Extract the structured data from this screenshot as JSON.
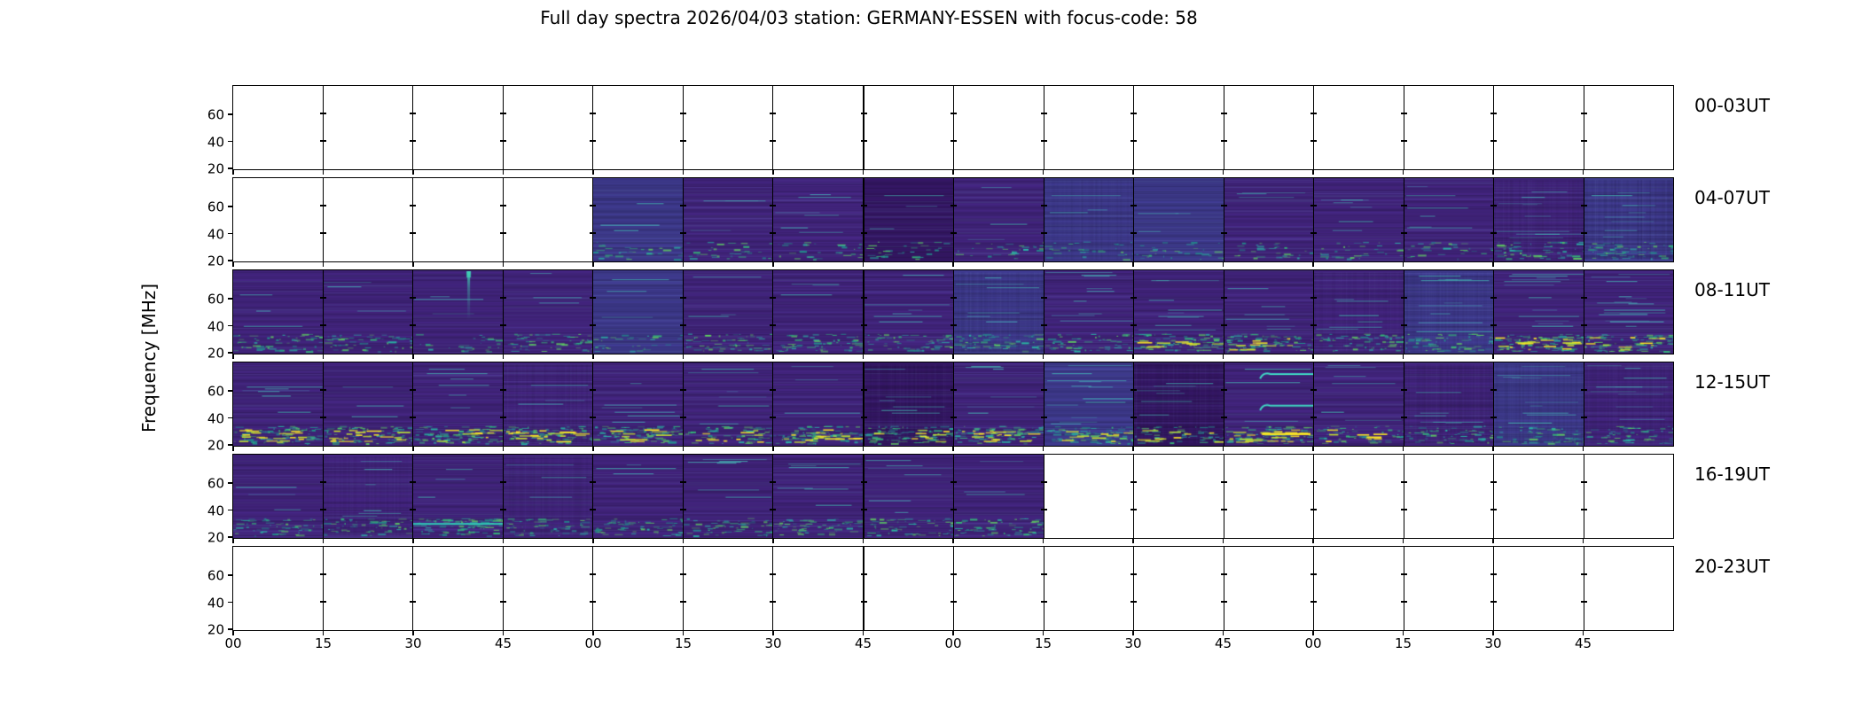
{
  "title": "Full day spectra 2026/04/03 station: GERMANY-ESSEN with focus-code: 58",
  "y_axis_label": "Frequency [MHz]",
  "colors": {
    "background": "#ffffff",
    "axes": "#000000",
    "base_purple": [
      62,
      34,
      118
    ],
    "base_blue": [
      58,
      54,
      132
    ],
    "base_dark": [
      50,
      22,
      96
    ],
    "teals": [
      "#21918c",
      "#2ab6a5",
      "#35b779",
      "#5ec962"
    ],
    "yellows": [
      "#fde725",
      "#c8e030"
    ]
  },
  "chart_data": {
    "type": "heatmap",
    "subtype": "solar-radio-spectrogram-daily-grid",
    "title": "Full day spectra 2026/04/03 station: GERMANY-ESSEN with focus-code: 58",
    "ylabel": "Frequency [MHz]",
    "y_range_mhz": [
      20,
      81
    ],
    "y_ticks": [
      "60",
      "40",
      "20"
    ],
    "x_tick_labels": [
      "00",
      "15",
      "30",
      "45",
      "00",
      "15",
      "30",
      "45",
      "00",
      "15",
      "30",
      "45",
      "00",
      "15",
      "30",
      "45"
    ],
    "segments_per_row": 16,
    "segment_minutes": 15,
    "legend_position": "none",
    "grid": "segment-borders",
    "rows": [
      {
        "label": "00-03UT",
        "coverage": "no data",
        "segments": [
          null,
          null,
          null,
          null,
          null,
          null,
          null,
          null,
          null,
          null,
          null,
          null,
          null,
          null,
          null,
          null
        ]
      },
      {
        "label": "04-07UT",
        "coverage": "data from 05:00 to 07:59",
        "segments": [
          null,
          null,
          null,
          null,
          {
            "base": "b",
            "seed": 41,
            "lines": 1,
            "bot": 1
          },
          {
            "base": "p",
            "seed": 42,
            "lines": 1,
            "bot": 1
          },
          {
            "base": "p",
            "seed": 43,
            "lines": 2,
            "bot": 1
          },
          {
            "base": "d",
            "seed": 44,
            "lines": 1,
            "bot": 1
          },
          {
            "base": "p",
            "seed": 45,
            "lines": 1,
            "bot": 1
          },
          {
            "base": "b",
            "seed": 46,
            "lines": 1,
            "bot": 1,
            "vst": 0.5
          },
          {
            "base": "b",
            "seed": 47,
            "lines": 1,
            "bot": 1
          },
          {
            "base": "p",
            "seed": 48,
            "lines": 1,
            "bot": 1
          },
          {
            "base": "p",
            "seed": 49,
            "lines": 2,
            "bot": 1
          },
          {
            "base": "p",
            "seed": 50,
            "lines": 2,
            "bot": 1
          },
          {
            "base": "p",
            "seed": 51,
            "lines": 3,
            "bot": 2,
            "vst": 0.8
          },
          {
            "base": "b",
            "seed": 52,
            "lines": 3,
            "bot": 2,
            "vst": 1
          }
        ]
      },
      {
        "label": "08-11UT",
        "coverage": "full data",
        "segments": [
          {
            "base": "p",
            "seed": 61,
            "lines": 1,
            "bot": 2
          },
          {
            "base": "p",
            "seed": 62,
            "lines": 1,
            "bot": 2
          },
          {
            "base": "p",
            "seed": 63,
            "lines": 1,
            "bot": 1,
            "burst": 0.62
          },
          {
            "base": "p",
            "seed": 64,
            "lines": 1,
            "bot": 2
          },
          {
            "base": "b",
            "seed": 65,
            "lines": 1,
            "bot": 1
          },
          {
            "base": "p",
            "seed": 66,
            "lines": 1,
            "bot": 2
          },
          {
            "base": "p",
            "seed": 67,
            "lines": 1,
            "bot": 2
          },
          {
            "base": "p",
            "seed": 68,
            "lines": 2,
            "bot": 2
          },
          {
            "base": "b",
            "seed": 69,
            "lines": 2,
            "bot": 2,
            "vst": 0.6
          },
          {
            "base": "p",
            "seed": 70,
            "lines": 3,
            "bot": 2
          },
          {
            "base": "p",
            "seed": 71,
            "lines": 3,
            "bot": 3,
            "yel": 1
          },
          {
            "base": "p",
            "seed": 72,
            "lines": 2,
            "bot": 3,
            "yel": 1
          },
          {
            "base": "p",
            "seed": 73,
            "lines": 2,
            "bot": 2,
            "vst": 0.6
          },
          {
            "base": "b",
            "seed": 74,
            "lines": 3,
            "bot": 2,
            "vst": 0.6
          },
          {
            "base": "p",
            "seed": 75,
            "lines": 4,
            "bot": 3,
            "yel": 2
          },
          {
            "base": "p",
            "seed": 76,
            "lines": 5,
            "bot": 3,
            "yel": 1
          }
        ]
      },
      {
        "label": "12-15UT",
        "coverage": "full data",
        "segments": [
          {
            "base": "p",
            "seed": 81,
            "lines": 2,
            "bot": 3,
            "yel": 2
          },
          {
            "base": "p",
            "seed": 82,
            "lines": 1,
            "bot": 3,
            "yel": 2
          },
          {
            "base": "p",
            "seed": 83,
            "lines": 2,
            "bot": 3,
            "yel": 1
          },
          {
            "base": "p",
            "seed": 84,
            "lines": 1,
            "bot": 3,
            "yel": 2,
            "vst": 0.5
          },
          {
            "base": "p",
            "seed": 85,
            "lines": 2,
            "bot": 3,
            "yel": 1
          },
          {
            "base": "p",
            "seed": 86,
            "lines": 2,
            "bot": 2,
            "yel": 1
          },
          {
            "base": "p",
            "seed": 87,
            "lines": 1,
            "bot": 3,
            "yel": 2
          },
          {
            "base": "d",
            "seed": 88,
            "lines": 2,
            "bot": 3,
            "yel": 1,
            "vst": 0.7
          },
          {
            "base": "p",
            "seed": 89,
            "lines": 2,
            "bot": 3,
            "yel": 2
          },
          {
            "base": "b",
            "seed": 90,
            "lines": 4,
            "bot": 3,
            "yel": 1
          },
          {
            "base": "d",
            "seed": 91,
            "lines": 2,
            "bot": 2,
            "yel": 1,
            "vst": 0.7
          },
          {
            "base": "p",
            "seed": 92,
            "lines": 1,
            "bot": 3,
            "yel": 2,
            "trace": 1
          },
          {
            "base": "p",
            "seed": 93,
            "lines": 2,
            "bot": 2,
            "yel": 1
          },
          {
            "base": "p",
            "seed": 94,
            "lines": 2,
            "bot": 2,
            "vst": 0.7
          },
          {
            "base": "b",
            "seed": 95,
            "lines": 3,
            "bot": 2,
            "vst": 0.7
          },
          {
            "base": "p",
            "seed": 96,
            "lines": 3,
            "bot": 2,
            "vst": 0.5
          }
        ]
      },
      {
        "label": "16-19UT",
        "coverage": "data from 16:00 to 18:14",
        "segments": [
          {
            "base": "p",
            "seed": 101,
            "lines": 1,
            "bot": 2
          },
          {
            "base": "p",
            "seed": 102,
            "lines": 2,
            "bot": 2,
            "vst": 0.5
          },
          {
            "base": "p",
            "seed": 103,
            "lines": 1,
            "bot": 3,
            "lowline": 1
          },
          {
            "base": "p",
            "seed": 104,
            "lines": 1,
            "bot": 2,
            "vst": 0.5
          },
          {
            "base": "p",
            "seed": 105,
            "lines": 1,
            "bot": 2
          },
          {
            "base": "p",
            "seed": 106,
            "lines": 2,
            "bot": 2
          },
          {
            "base": "p",
            "seed": 107,
            "lines": 2,
            "bot": 2
          },
          {
            "base": "p",
            "seed": 108,
            "lines": 2,
            "bot": 2
          },
          {
            "base": "p",
            "seed": 109,
            "lines": 1,
            "bot": 2
          },
          null,
          null,
          null,
          null,
          null,
          null,
          null
        ]
      },
      {
        "label": "20-23UT",
        "coverage": "no data",
        "segments": [
          null,
          null,
          null,
          null,
          null,
          null,
          null,
          null,
          null,
          null,
          null,
          null,
          null,
          null,
          null,
          null
        ]
      }
    ]
  }
}
